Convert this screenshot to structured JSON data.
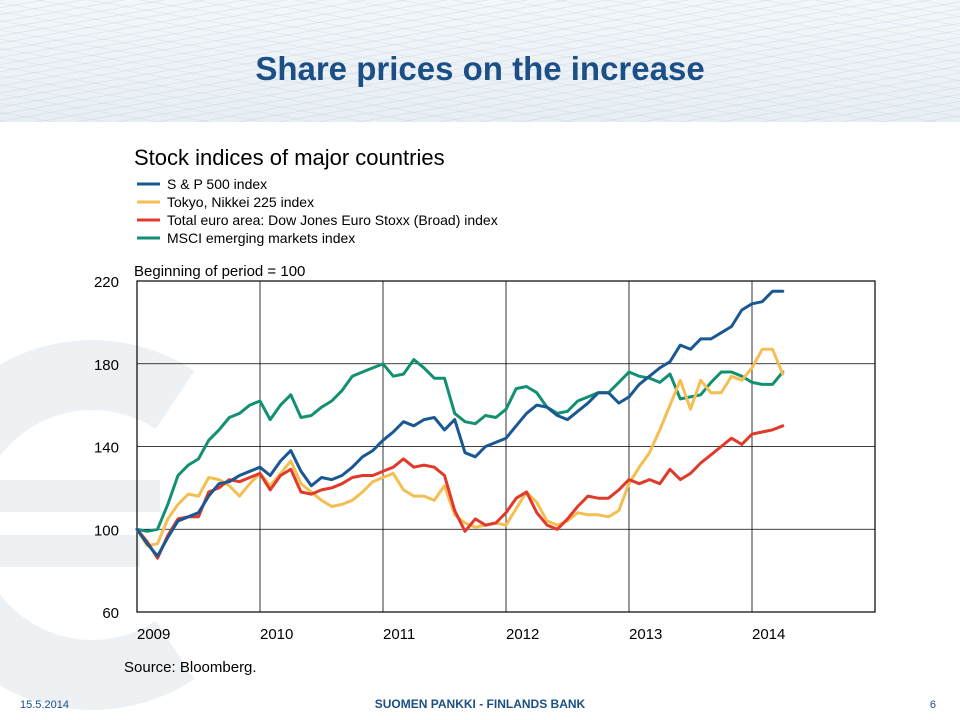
{
  "slide": {
    "title": "Share prices on the increase",
    "date": "15.5.2014",
    "bank_name": "SUOMEN PANKKI - FINLANDS BANK",
    "page_number": "6"
  },
  "colors": {
    "title": "#1b4f86",
    "sp500": "#1a5893",
    "nikkei": "#f5be52",
    "eurostoxx": "#e03a2b",
    "msci": "#139072"
  },
  "chart_data": {
    "type": "line",
    "title": "Stock indices of major countries",
    "subtitle": "Beginning of period = 100",
    "source": "Source: Bloomberg.",
    "x_tick_labels": [
      "2009",
      "2010",
      "2011",
      "2012",
      "2013",
      "2014"
    ],
    "y_tick_labels": [
      "60",
      "100",
      "140",
      "180",
      "220"
    ],
    "xlim": [
      2009.0,
      2015.0
    ],
    "ylim": [
      60,
      220
    ],
    "grid": true,
    "legend_position": "top-left",
    "series": [
      {
        "name": "S & P 500 index",
        "color": "#1a5893",
        "x": [
          2009.0,
          2009.083,
          2009.167,
          2009.25,
          2009.333,
          2009.417,
          2009.5,
          2009.583,
          2009.667,
          2009.75,
          2009.833,
          2009.917,
          2010.0,
          2010.083,
          2010.167,
          2010.25,
          2010.333,
          2010.417,
          2010.5,
          2010.583,
          2010.667,
          2010.75,
          2010.833,
          2010.917,
          2011.0,
          2011.083,
          2011.167,
          2011.25,
          2011.333,
          2011.417,
          2011.5,
          2011.583,
          2011.667,
          2011.75,
          2011.833,
          2011.917,
          2012.0,
          2012.083,
          2012.167,
          2012.25,
          2012.333,
          2012.417,
          2012.5,
          2012.583,
          2012.667,
          2012.75,
          2012.833,
          2012.917,
          2013.0,
          2013.083,
          2013.167,
          2013.25,
          2013.333,
          2013.417,
          2013.5,
          2013.583,
          2013.667,
          2013.75,
          2013.833,
          2013.917,
          2014.0,
          2014.083,
          2014.167,
          2014.25
        ],
        "values": [
          100,
          93,
          87,
          96,
          104,
          106,
          108,
          116,
          122,
          123,
          126,
          128,
          130,
          126,
          133,
          138,
          128,
          121,
          125,
          124,
          126,
          130,
          135,
          138,
          143,
          147,
          152,
          150,
          153,
          154,
          148,
          153,
          137,
          135,
          140,
          142,
          144,
          150,
          156,
          160,
          159,
          155,
          153,
          157,
          161,
          166,
          166,
          161,
          164,
          170,
          174,
          178,
          181,
          189,
          187,
          192,
          192,
          195,
          198,
          206,
          209,
          210,
          215,
          215
        ]
      },
      {
        "name": "Tokyo, Nikkei 225 index",
        "color": "#f5be52",
        "x": [
          2009.0,
          2009.083,
          2009.167,
          2009.25,
          2009.333,
          2009.417,
          2009.5,
          2009.583,
          2009.667,
          2009.75,
          2009.833,
          2009.917,
          2010.0,
          2010.083,
          2010.167,
          2010.25,
          2010.333,
          2010.417,
          2010.5,
          2010.583,
          2010.667,
          2010.75,
          2010.833,
          2010.917,
          2011.0,
          2011.083,
          2011.167,
          2011.25,
          2011.333,
          2011.417,
          2011.5,
          2011.583,
          2011.667,
          2011.75,
          2011.833,
          2011.917,
          2012.0,
          2012.083,
          2012.167,
          2012.25,
          2012.333,
          2012.417,
          2012.5,
          2012.583,
          2012.667,
          2012.75,
          2012.833,
          2012.917,
          2013.0,
          2013.083,
          2013.167,
          2013.25,
          2013.333,
          2013.417,
          2013.5,
          2013.583,
          2013.667,
          2013.75,
          2013.833,
          2013.917,
          2014.0,
          2014.083,
          2014.167,
          2014.25
        ],
        "values": [
          100,
          92,
          93,
          105,
          112,
          117,
          116,
          125,
          124,
          121,
          116,
          122,
          127,
          121,
          127,
          133,
          122,
          118,
          114,
          111,
          112,
          114,
          118,
          123,
          125,
          127,
          119,
          116,
          116,
          114,
          121,
          107,
          103,
          101,
          102,
          103,
          102,
          110,
          118,
          113,
          104,
          102,
          104,
          108,
          107,
          107,
          106,
          109,
          122,
          130,
          137,
          148,
          160,
          172,
          158,
          172,
          166,
          166,
          174,
          172,
          178,
          187,
          187,
          175
        ]
      },
      {
        "name": "Total euro area: Dow Jones Euro Stoxx (Broad) index",
        "color": "#e03a2b",
        "x": [
          2009.0,
          2009.083,
          2009.167,
          2009.25,
          2009.333,
          2009.417,
          2009.5,
          2009.583,
          2009.667,
          2009.75,
          2009.833,
          2009.917,
          2010.0,
          2010.083,
          2010.167,
          2010.25,
          2010.333,
          2010.417,
          2010.5,
          2010.583,
          2010.667,
          2010.75,
          2010.833,
          2010.917,
          2011.0,
          2011.083,
          2011.167,
          2011.25,
          2011.333,
          2011.417,
          2011.5,
          2011.583,
          2011.667,
          2011.75,
          2011.833,
          2011.917,
          2012.0,
          2012.083,
          2012.167,
          2012.25,
          2012.333,
          2012.417,
          2012.5,
          2012.583,
          2012.667,
          2012.75,
          2012.833,
          2012.917,
          2013.0,
          2013.083,
          2013.167,
          2013.25,
          2013.333,
          2013.417,
          2013.5,
          2013.583,
          2013.667,
          2013.75,
          2013.833,
          2013.917,
          2014.0,
          2014.083,
          2014.167,
          2014.25
        ],
        "values": [
          100,
          94,
          86,
          97,
          105,
          106,
          106,
          118,
          120,
          124,
          123,
          125,
          127,
          119,
          126,
          129,
          118,
          117,
          119,
          120,
          122,
          125,
          126,
          126,
          128,
          130,
          134,
          130,
          131,
          130,
          126,
          109,
          99,
          105,
          102,
          103,
          108,
          115,
          118,
          108,
          102,
          100,
          105,
          111,
          116,
          115,
          115,
          119,
          124,
          122,
          124,
          122,
          129,
          124,
          127,
          132,
          136,
          140,
          144,
          141,
          146,
          147,
          148,
          150
        ]
      },
      {
        "name": "MSCI emerging markets index",
        "color": "#139072",
        "x": [
          2009.0,
          2009.083,
          2009.167,
          2009.25,
          2009.333,
          2009.417,
          2009.5,
          2009.583,
          2009.667,
          2009.75,
          2009.833,
          2009.917,
          2010.0,
          2010.083,
          2010.167,
          2010.25,
          2010.333,
          2010.417,
          2010.5,
          2010.583,
          2010.667,
          2010.75,
          2010.833,
          2010.917,
          2011.0,
          2011.083,
          2011.167,
          2011.25,
          2011.333,
          2011.417,
          2011.5,
          2011.583,
          2011.667,
          2011.75,
          2011.833,
          2011.917,
          2012.0,
          2012.083,
          2012.167,
          2012.25,
          2012.333,
          2012.417,
          2012.5,
          2012.583,
          2012.667,
          2012.75,
          2012.833,
          2012.917,
          2013.0,
          2013.083,
          2013.167,
          2013.25,
          2013.333,
          2013.417,
          2013.5,
          2013.583,
          2013.667,
          2013.75,
          2013.833,
          2013.917,
          2014.0,
          2014.083,
          2014.167,
          2014.25
        ],
        "values": [
          100,
          99,
          100,
          112,
          126,
          131,
          134,
          143,
          148,
          154,
          156,
          160,
          162,
          153,
          160,
          165,
          154,
          155,
          159,
          162,
          167,
          174,
          176,
          178,
          180,
          174,
          175,
          182,
          178,
          173,
          173,
          156,
          152,
          151,
          155,
          154,
          158,
          168,
          169,
          166,
          159,
          156,
          157,
          162,
          164,
          166,
          166,
          171,
          176,
          174,
          173,
          171,
          175,
          163,
          164,
          165,
          171,
          176,
          176,
          174,
          171,
          170,
          170,
          176
        ]
      }
    ]
  }
}
